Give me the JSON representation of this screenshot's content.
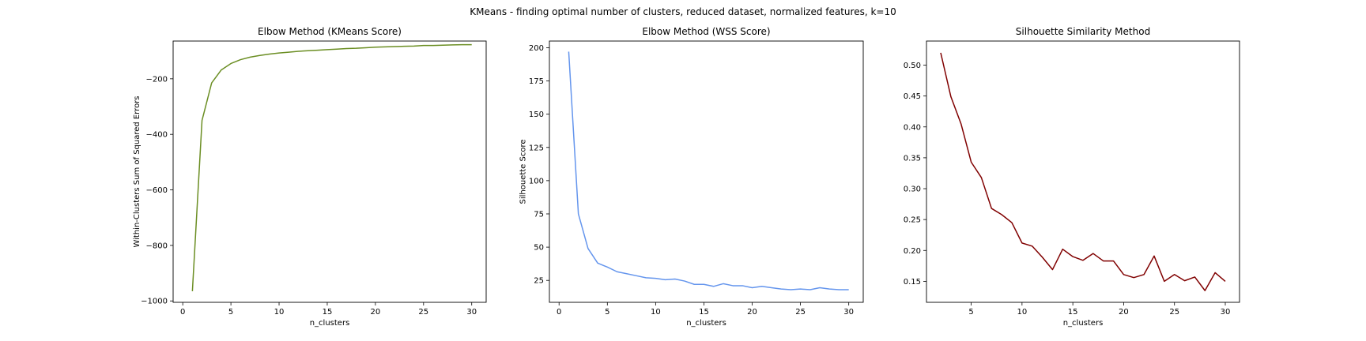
{
  "figure": {
    "suptitle": "KMeans - finding optimal number of clusters, reduced dataset, normalized features, k=10"
  },
  "chart_data": [
    {
      "type": "line",
      "title": "Elbow Method (KMeans Score)",
      "xlabel": "n_clusters",
      "ylabel": "Within-Clusters Sum of Squared Errors",
      "xlim": [
        -1.0,
        31.5
      ],
      "ylim": [
        -1005,
        -64
      ],
      "xticks": [
        0,
        5,
        10,
        15,
        20,
        25,
        30
      ],
      "yticks": [
        -1000,
        -800,
        -600,
        -400,
        -200
      ],
      "color": "#6b8e23",
      "x": [
        1,
        2,
        3,
        4,
        5,
        6,
        7,
        8,
        9,
        10,
        11,
        12,
        13,
        14,
        15,
        16,
        17,
        18,
        19,
        20,
        21,
        22,
        23,
        24,
        25,
        26,
        27,
        28,
        29,
        30
      ],
      "y": [
        -965,
        -350,
        -215,
        -168,
        -145,
        -131,
        -122,
        -116,
        -111,
        -107,
        -104,
        -101,
        -99,
        -97,
        -95,
        -93,
        -91,
        -90,
        -88,
        -86,
        -85,
        -84,
        -83,
        -82,
        -80,
        -80,
        -79,
        -78,
        -77,
        -77
      ]
    },
    {
      "type": "line",
      "title": "Elbow Method (WSS Score)",
      "xlabel": "n_clusters",
      "ylabel": "Silhouette Score",
      "xlim": [
        -1.0,
        31.5
      ],
      "ylim": [
        8.5,
        205
      ],
      "xticks": [
        0,
        5,
        10,
        15,
        20,
        25,
        30
      ],
      "yticks": [
        25,
        50,
        75,
        100,
        125,
        150,
        175,
        200
      ],
      "color": "#6495ed",
      "x": [
        1,
        2,
        3,
        4,
        5,
        6,
        7,
        8,
        9,
        10,
        11,
        12,
        13,
        14,
        15,
        16,
        17,
        18,
        19,
        20,
        21,
        22,
        23,
        24,
        25,
        26,
        27,
        28,
        29,
        30
      ],
      "y": [
        197,
        75,
        49,
        38,
        35,
        31.5,
        30,
        28.5,
        27,
        26.5,
        25.5,
        26,
        24.5,
        22,
        22,
        20.5,
        22.5,
        21,
        21,
        19.5,
        20.5,
        19.5,
        18.5,
        18,
        18.5,
        18,
        19.5,
        18.5,
        18,
        18
      ]
    },
    {
      "type": "line",
      "title": "Silhouette Similarity Method",
      "xlabel": "n_clusters",
      "ylabel": "",
      "xlim": [
        0.6,
        31.4
      ],
      "ylim": [
        0.116,
        0.539
      ],
      "xticks": [
        5,
        10,
        15,
        20,
        25,
        30
      ],
      "yticks": [
        0.15,
        0.2,
        0.25,
        0.3,
        0.35,
        0.4,
        0.45,
        0.5
      ],
      "color": "#800000",
      "x": [
        2,
        3,
        4,
        5,
        6,
        7,
        8,
        9,
        10,
        11,
        12,
        13,
        14,
        15,
        16,
        17,
        18,
        19,
        20,
        21,
        22,
        23,
        24,
        25,
        26,
        27,
        28,
        29,
        30
      ],
      "y": [
        0.52,
        0.449,
        0.405,
        0.343,
        0.318,
        0.268,
        0.258,
        0.245,
        0.212,
        0.207,
        0.189,
        0.169,
        0.202,
        0.19,
        0.184,
        0.195,
        0.183,
        0.183,
        0.161,
        0.156,
        0.161,
        0.191,
        0.15,
        0.161,
        0.151,
        0.157,
        0.135,
        0.164,
        0.15
      ]
    }
  ]
}
